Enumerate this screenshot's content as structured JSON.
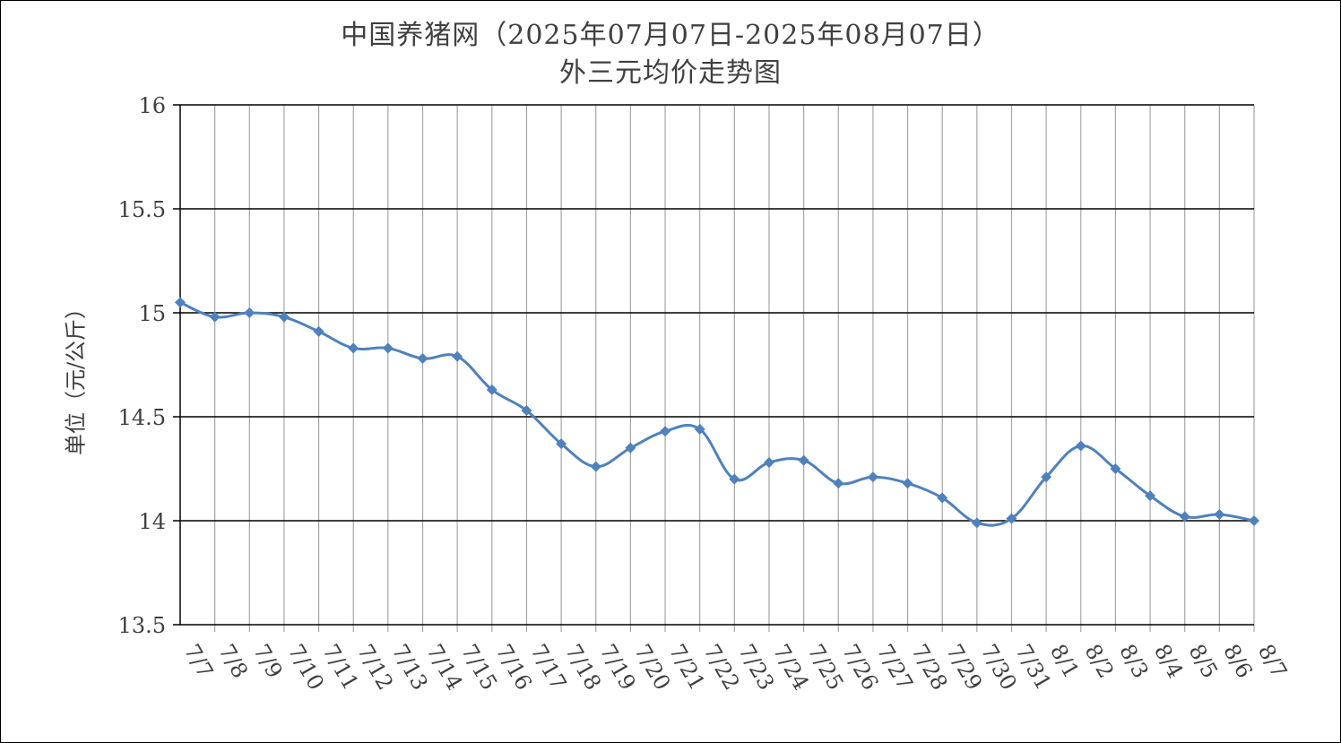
{
  "chart_data": {
    "type": "line",
    "title": "中国养猪网（2025年07月07日-2025年08月07日）",
    "subtitle": "外三元均价走势图",
    "xlabel": "",
    "ylabel": "单位（元/公斤）",
    "ylim": [
      13.5,
      16
    ],
    "yticks": [
      "13.5",
      "14",
      "14.5",
      "15",
      "15.5",
      "16"
    ],
    "ytick_values": [
      13.5,
      14,
      14.5,
      15,
      15.5,
      16
    ],
    "grid": "on",
    "legend": "none",
    "categories": [
      "7/7",
      "7/8",
      "7/9",
      "7/10",
      "7/11",
      "7/12",
      "7/13",
      "7/14",
      "7/15",
      "7/16",
      "7/17",
      "7/18",
      "7/19",
      "7/20",
      "7/21",
      "7/22",
      "7/23",
      "7/24",
      "7/25",
      "7/26",
      "7/27",
      "7/28",
      "7/29",
      "7/30",
      "7/31",
      "8/1",
      "8/2",
      "8/3",
      "8/4",
      "8/5",
      "8/6",
      "8/7"
    ],
    "series": [
      {
        "values": [
          15.05,
          14.98,
          15.0,
          14.98,
          14.91,
          14.83,
          14.83,
          14.78,
          14.79,
          14.63,
          14.53,
          14.37,
          14.26,
          14.35,
          14.43,
          14.44,
          14.2,
          14.28,
          14.29,
          14.18,
          14.21,
          14.18,
          14.11,
          13.99,
          14.01,
          14.21,
          14.36,
          14.25,
          14.12,
          14.02,
          14.03,
          14.0
        ],
        "color": "#4F81BD"
      }
    ],
    "colors": {
      "line": "#4F81BD",
      "marker": "#4F81BD",
      "grid_h": "#000000",
      "grid_v": "#A6A6A6"
    }
  }
}
